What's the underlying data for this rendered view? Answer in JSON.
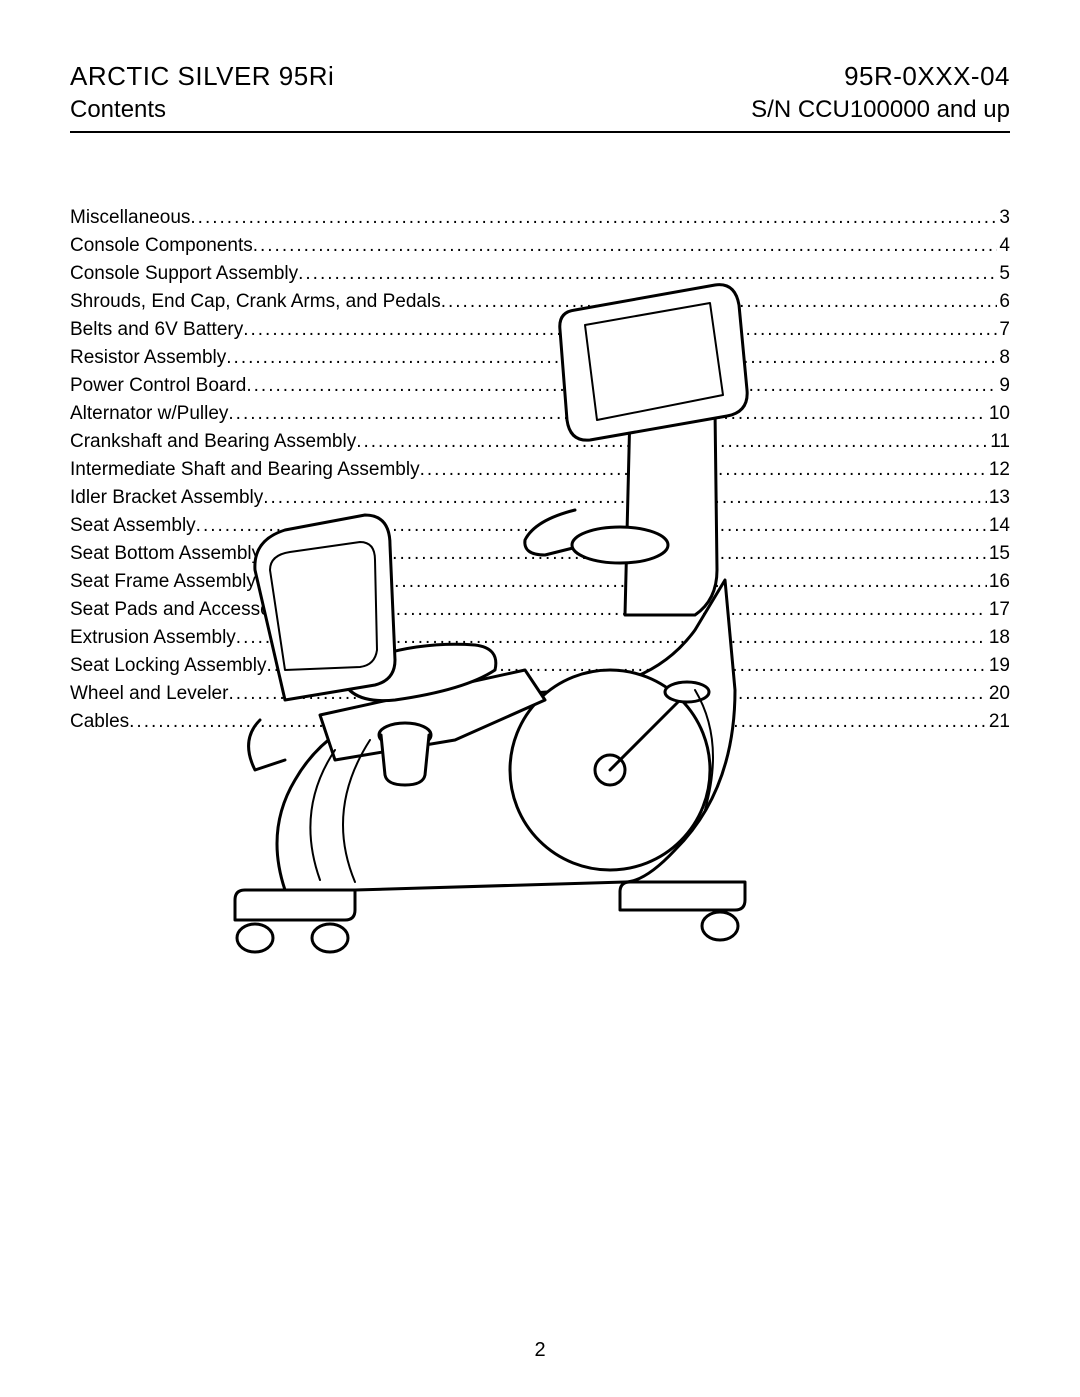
{
  "header": {
    "title_left1": "ARCTIC SILVER 95Ri",
    "title_left2": "Contents",
    "title_right1": "95R-0XXX-04",
    "title_right2": "S/N CCU100000 and up"
  },
  "toc": [
    {
      "label": "Miscellaneous",
      "page": "3"
    },
    {
      "label": "Console Components",
      "page": "4"
    },
    {
      "label": "Console Support Assembly",
      "page": "5"
    },
    {
      "label": "Shrouds, End Cap, Crank Arms, and Pedals",
      "page": "6"
    },
    {
      "label": "Belts and 6V Battery",
      "page": "7"
    },
    {
      "label": "Resistor Assembly",
      "page": "8"
    },
    {
      "label": "Power Control Board",
      "page": "9"
    },
    {
      "label": "Alternator w/Pulley",
      "page": "10"
    },
    {
      "label": "Crankshaft and Bearing Assembly",
      "page": "11"
    },
    {
      "label": "Intermediate Shaft and Bearing Assembly",
      "page": "12"
    },
    {
      "label": "Idler Bracket Assembly",
      "page": "13"
    },
    {
      "label": "Seat Assembly",
      "page": "14"
    },
    {
      "label": "Seat Bottom Assembly",
      "page": "15"
    },
    {
      "label": "Seat Frame Assembly",
      "page": "16"
    },
    {
      "label": "Seat Pads and Accessory",
      "page": "17"
    },
    {
      "label": "Extrusion Assembly",
      "page": "18"
    },
    {
      "label": "Seat Locking Assembly",
      "page": "19"
    },
    {
      "label": "Wheel and Leveler",
      "page": "20"
    },
    {
      "label": "Cables",
      "page": "21"
    }
  ],
  "page_number": "2",
  "style": {
    "text_color": "#000000",
    "bg_color": "#ffffff",
    "rule_color": "#000000",
    "illustration_stroke": "#000000",
    "illustration_fill": "#ffffff",
    "title_fontsize_pt": 20,
    "body_fontsize_pt": 14
  }
}
